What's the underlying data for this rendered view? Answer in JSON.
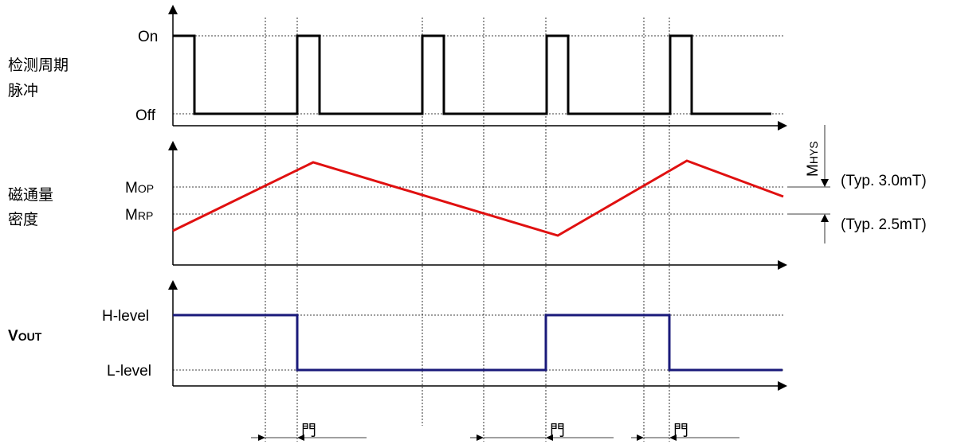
{
  "pulse_section": {
    "label_line1": "检测周期",
    "label_line2": "脉冲",
    "on_label": "On",
    "off_label": "Off"
  },
  "flux_section": {
    "label_line1": "磁通量",
    "label_line2": "密度",
    "mop_main": "M",
    "mop_sub": "OP",
    "mrp_main": "M",
    "mrp_sub": "RP",
    "mhys_main": "M",
    "mhys_sub": "HYS",
    "mop_typ": "(Typ. 3.0mT)",
    "mrp_typ": "(Typ. 2.5mT)"
  },
  "vout_section": {
    "label_main": "V",
    "label_sub": "OUT",
    "high_label": "H-level",
    "low_label": "L-level"
  },
  "delay_marks": {
    "mark_glyph": "門"
  },
  "colors": {
    "pulse": "#000000",
    "flux": "#e01010",
    "vout": "#1a1a7a"
  }
}
